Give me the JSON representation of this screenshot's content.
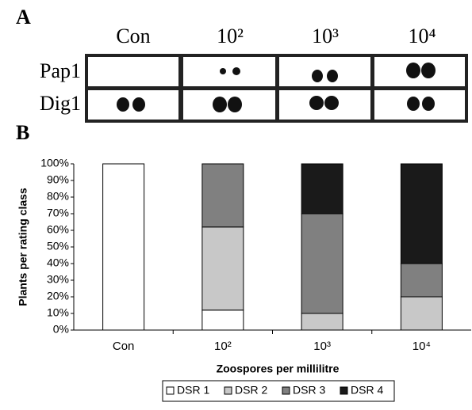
{
  "panel_a": {
    "label": "A",
    "columns": [
      "Con",
      "10²",
      "10³",
      "10⁴"
    ],
    "rows": [
      "Pap1",
      "Dig1"
    ]
  },
  "chart_data": {
    "type": "bar",
    "stacked": true,
    "panel_label": "B",
    "x_label": "Zoospores per millilitre",
    "y_label": "Plants per rating class",
    "categories": [
      "Con",
      "10²",
      "10³",
      "10⁴"
    ],
    "series": [
      {
        "name": "DSR 1",
        "color": "#ffffff",
        "values": [
          100,
          12,
          0,
          0
        ]
      },
      {
        "name": "DSR 2",
        "color": "#c8c8c8",
        "values": [
          0,
          50,
          10,
          20
        ]
      },
      {
        "name": "DSR 3",
        "color": "#808080",
        "values": [
          0,
          38,
          60,
          20
        ]
      },
      {
        "name": "DSR 4",
        "color": "#1a1a1a",
        "values": [
          0,
          0,
          30,
          60
        ]
      }
    ],
    "ylim": [
      0,
      100
    ],
    "yticks": [
      {
        "value": 0,
        "label": "0%"
      },
      {
        "value": 10,
        "label": "10%"
      },
      {
        "value": 20,
        "label": "20%"
      },
      {
        "value": 30,
        "label": "30%"
      },
      {
        "value": 40,
        "label": "40%"
      },
      {
        "value": 50,
        "label": "50%"
      },
      {
        "value": 60,
        "label": "60%"
      },
      {
        "value": 70,
        "label": "70%"
      },
      {
        "value": 80,
        "label": "80%"
      },
      {
        "value": 90,
        "label": "90%"
      },
      {
        "value": 100,
        "label": "100%"
      }
    ],
    "legend": "bottom"
  }
}
